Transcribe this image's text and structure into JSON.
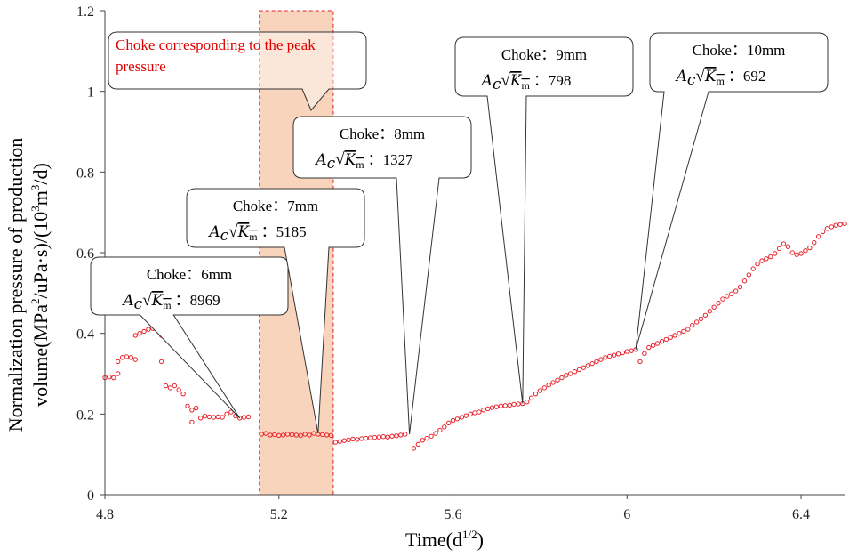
{
  "chart_data": {
    "type": "scatter",
    "title": "",
    "xlabel": "Time(d",
    "xlabel_sup": "1/2",
    "xlabel_end": ")",
    "ylabel_line1": "Normalization pressure of production",
    "ylabel_line2_a": "volume(MPa",
    "ylabel_line2_sup1": "2",
    "ylabel_line2_b": "/uPa·s)/(10",
    "ylabel_line2_sup2": "3",
    "ylabel_line2_c": "m",
    "ylabel_line2_sup3": "3",
    "ylabel_line2_d": "/d)",
    "xlim": [
      4.8,
      6.5
    ],
    "ylim": [
      0,
      1.2
    ],
    "x_ticks": [
      4.8,
      5.2,
      5.6,
      6.0,
      6.4
    ],
    "x_tick_labels": [
      "4.8",
      "5.2",
      "5.6",
      "6",
      "6.4"
    ],
    "y_ticks": [
      0,
      0.2,
      0.4,
      0.6,
      0.8,
      1.0,
      1.2
    ],
    "y_tick_labels": [
      "0",
      "0.2",
      "0.4",
      "0.6",
      "0.8",
      "1",
      "1.2"
    ],
    "marker_color": "#e8202a",
    "highlight_color": "#f5c6a5",
    "highlight_border_color": "#e8202a",
    "highlight_x_range": [
      5.155,
      5.325
    ],
    "series": [
      {
        "name": "normalized pressure",
        "points": [
          [
            4.8,
            0.29
          ],
          [
            4.81,
            0.292
          ],
          [
            4.82,
            0.29
          ],
          [
            4.83,
            0.3
          ],
          [
            4.83,
            0.33
          ],
          [
            4.84,
            0.34
          ],
          [
            4.85,
            0.342
          ],
          [
            4.86,
            0.34
          ],
          [
            4.87,
            0.335
          ],
          [
            4.87,
            0.395
          ],
          [
            4.88,
            0.4
          ],
          [
            4.89,
            0.405
          ],
          [
            4.9,
            0.41
          ],
          [
            4.91,
            0.412
          ],
          [
            4.92,
            0.41
          ],
          [
            4.93,
            0.395
          ],
          [
            4.93,
            0.33
          ],
          [
            4.94,
            0.27
          ],
          [
            4.95,
            0.265
          ],
          [
            4.96,
            0.27
          ],
          [
            4.97,
            0.26
          ],
          [
            4.98,
            0.25
          ],
          [
            4.99,
            0.22
          ],
          [
            5.0,
            0.21
          ],
          [
            5.0,
            0.18
          ],
          [
            5.01,
            0.215
          ],
          [
            5.02,
            0.19
          ],
          [
            5.03,
            0.195
          ],
          [
            5.04,
            0.193
          ],
          [
            5.05,
            0.192
          ],
          [
            5.06,
            0.193
          ],
          [
            5.07,
            0.192
          ],
          [
            5.08,
            0.2
          ],
          [
            5.09,
            0.205
          ],
          [
            5.1,
            0.195
          ],
          [
            5.11,
            0.19
          ],
          [
            5.12,
            0.192
          ],
          [
            5.13,
            0.193
          ],
          [
            5.16,
            0.15
          ],
          [
            5.17,
            0.152
          ],
          [
            5.18,
            0.148
          ],
          [
            5.19,
            0.149
          ],
          [
            5.2,
            0.147
          ],
          [
            5.21,
            0.148
          ],
          [
            5.22,
            0.15
          ],
          [
            5.23,
            0.149
          ],
          [
            5.24,
            0.148
          ],
          [
            5.25,
            0.147
          ],
          [
            5.26,
            0.15
          ],
          [
            5.27,
            0.148
          ],
          [
            5.28,
            0.152
          ],
          [
            5.29,
            0.15
          ],
          [
            5.3,
            0.149
          ],
          [
            5.31,
            0.148
          ],
          [
            5.32,
            0.147
          ],
          [
            5.33,
            0.13
          ],
          [
            5.34,
            0.132
          ],
          [
            5.35,
            0.134
          ],
          [
            5.36,
            0.136
          ],
          [
            5.37,
            0.138
          ],
          [
            5.38,
            0.137
          ],
          [
            5.39,
            0.139
          ],
          [
            5.4,
            0.14
          ],
          [
            5.41,
            0.141
          ],
          [
            5.42,
            0.142
          ],
          [
            5.43,
            0.143
          ],
          [
            5.44,
            0.144
          ],
          [
            5.45,
            0.143
          ],
          [
            5.46,
            0.145
          ],
          [
            5.47,
            0.146
          ],
          [
            5.48,
            0.148
          ],
          [
            5.49,
            0.15
          ],
          [
            5.51,
            0.115
          ],
          [
            5.52,
            0.125
          ],
          [
            5.53,
            0.135
          ],
          [
            5.54,
            0.14
          ],
          [
            5.55,
            0.145
          ],
          [
            5.56,
            0.152
          ],
          [
            5.57,
            0.16
          ],
          [
            5.58,
            0.168
          ],
          [
            5.59,
            0.178
          ],
          [
            5.6,
            0.184
          ],
          [
            5.61,
            0.188
          ],
          [
            5.62,
            0.192
          ],
          [
            5.63,
            0.196
          ],
          [
            5.64,
            0.2
          ],
          [
            5.65,
            0.203
          ],
          [
            5.66,
            0.205
          ],
          [
            5.67,
            0.21
          ],
          [
            5.68,
            0.213
          ],
          [
            5.69,
            0.216
          ],
          [
            5.7,
            0.218
          ],
          [
            5.71,
            0.22
          ],
          [
            5.72,
            0.221
          ],
          [
            5.73,
            0.222
          ],
          [
            5.74,
            0.224
          ],
          [
            5.75,
            0.225
          ],
          [
            5.76,
            0.226
          ],
          [
            5.77,
            0.23
          ],
          [
            5.78,
            0.24
          ],
          [
            5.79,
            0.25
          ],
          [
            5.8,
            0.258
          ],
          [
            5.81,
            0.265
          ],
          [
            5.82,
            0.272
          ],
          [
            5.83,
            0.278
          ],
          [
            5.84,
            0.284
          ],
          [
            5.85,
            0.29
          ],
          [
            5.86,
            0.296
          ],
          [
            5.87,
            0.3
          ],
          [
            5.88,
            0.305
          ],
          [
            5.89,
            0.31
          ],
          [
            5.9,
            0.315
          ],
          [
            5.91,
            0.32
          ],
          [
            5.92,
            0.325
          ],
          [
            5.93,
            0.33
          ],
          [
            5.94,
            0.335
          ],
          [
            5.95,
            0.34
          ],
          [
            5.96,
            0.343
          ],
          [
            5.97,
            0.346
          ],
          [
            5.98,
            0.349
          ],
          [
            5.99,
            0.352
          ],
          [
            6.0,
            0.355
          ],
          [
            6.01,
            0.357
          ],
          [
            6.02,
            0.36
          ],
          [
            6.03,
            0.33
          ],
          [
            6.04,
            0.35
          ],
          [
            6.05,
            0.365
          ],
          [
            6.06,
            0.37
          ],
          [
            6.07,
            0.375
          ],
          [
            6.08,
            0.38
          ],
          [
            6.09,
            0.385
          ],
          [
            6.1,
            0.39
          ],
          [
            6.11,
            0.395
          ],
          [
            6.12,
            0.4
          ],
          [
            6.13,
            0.405
          ],
          [
            6.14,
            0.41
          ],
          [
            6.15,
            0.42
          ],
          [
            6.16,
            0.428
          ],
          [
            6.17,
            0.436
          ],
          [
            6.18,
            0.445
          ],
          [
            6.19,
            0.455
          ],
          [
            6.2,
            0.465
          ],
          [
            6.21,
            0.475
          ],
          [
            6.22,
            0.485
          ],
          [
            6.23,
            0.492
          ],
          [
            6.24,
            0.498
          ],
          [
            6.25,
            0.505
          ],
          [
            6.26,
            0.515
          ],
          [
            6.27,
            0.53
          ],
          [
            6.28,
            0.545
          ],
          [
            6.29,
            0.56
          ],
          [
            6.3,
            0.572
          ],
          [
            6.31,
            0.58
          ],
          [
            6.32,
            0.585
          ],
          [
            6.33,
            0.59
          ],
          [
            6.34,
            0.598
          ],
          [
            6.35,
            0.61
          ],
          [
            6.36,
            0.622
          ],
          [
            6.37,
            0.615
          ],
          [
            6.38,
            0.6
          ],
          [
            6.39,
            0.595
          ],
          [
            6.4,
            0.598
          ],
          [
            6.41,
            0.605
          ],
          [
            6.42,
            0.612
          ],
          [
            6.43,
            0.625
          ],
          [
            6.44,
            0.64
          ],
          [
            6.45,
            0.652
          ],
          [
            6.46,
            0.66
          ],
          [
            6.47,
            0.664
          ],
          [
            6.48,
            0.668
          ],
          [
            6.49,
            0.67
          ],
          [
            6.5,
            0.672
          ]
        ]
      }
    ],
    "annotations": [
      {
        "label": "Choke：6mm",
        "formula_label": "A",
        "formula_sub": "c",
        "formula_root": "K",
        "formula_root_sub": "m",
        "value": "：8969",
        "point_x": 5.11,
        "point_y": 0.19
      },
      {
        "label": "Choke：7mm",
        "formula_label": "A",
        "formula_sub": "c",
        "formula_root": "K",
        "formula_root_sub": "m",
        "value": "：5185",
        "point_x": 5.29,
        "point_y": 0.152
      },
      {
        "label": "Choke：8mm",
        "formula_label": "A",
        "formula_sub": "c",
        "formula_root": "K",
        "formula_root_sub": "m",
        "value": "：1327",
        "point_x": 5.5,
        "point_y": 0.15
      },
      {
        "label": "Choke：9mm",
        "formula_label": "A",
        "formula_sub": "c",
        "formula_root": "K",
        "formula_root_sub": "m",
        "value": "：798",
        "point_x": 5.76,
        "point_y": 0.226
      },
      {
        "label": "Choke：10mm",
        "formula_label": "A",
        "formula_sub": "c",
        "formula_root": "K",
        "formula_root_sub": "m",
        "value": "：692",
        "point_x": 6.02,
        "point_y": 0.36
      }
    ],
    "highlight_note_line1": "Choke corresponding to the peak",
    "highlight_note_line2": "pressure"
  }
}
